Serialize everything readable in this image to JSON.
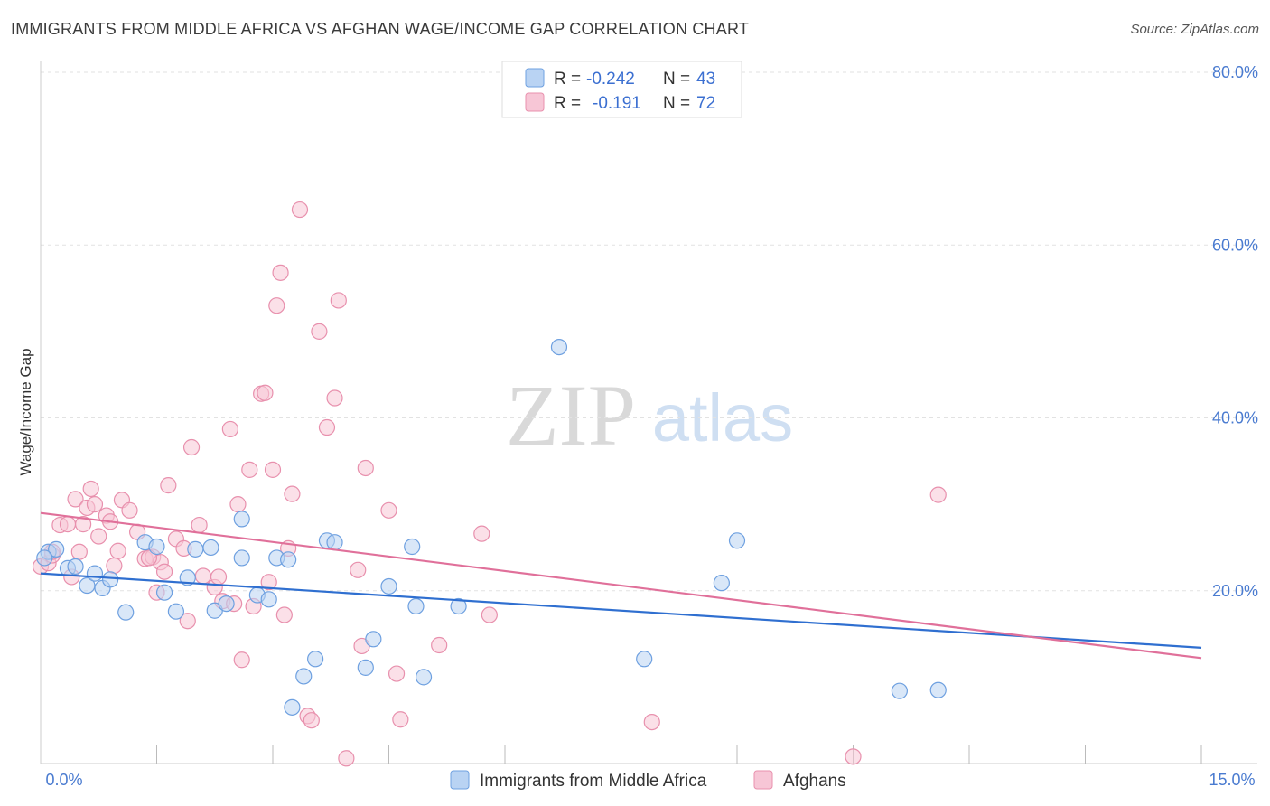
{
  "title": "IMMIGRANTS FROM MIDDLE AFRICA VS AFGHAN WAGE/INCOME GAP CORRELATION CHART",
  "source": "Source: ZipAtlas.com",
  "watermark": {
    "zip": "ZIP",
    "atlas": "atlas"
  },
  "colors": {
    "blue_fill": "#b9d3f3",
    "blue_stroke": "#6ea0e0",
    "blue_line": "#2f6fd0",
    "pink_fill": "#f7c6d6",
    "pink_stroke": "#e890ad",
    "pink_line": "#e0709a",
    "axis_label": "#4a7bd0"
  },
  "legend": {
    "rows": [
      {
        "r_label": "R =",
        "r_value": "-0.242",
        "n_label": "N =",
        "n_value": "43"
      },
      {
        "r_label": "R =",
        "r_value": "-0.191",
        "n_label": "N =",
        "n_value": "72"
      }
    ]
  },
  "chart_data": {
    "type": "scatter",
    "title": "IMMIGRANTS FROM MIDDLE AFRICA VS AFGHAN WAGE/INCOME GAP CORRELATION CHART",
    "xlabel": "",
    "ylabel": "Wage/Income Gap",
    "xlim": [
      0,
      15
    ],
    "ylim": [
      0,
      80
    ],
    "x_tick_labels": [
      "0.0%",
      "15.0%"
    ],
    "y_tick_labels": [
      "20.0%",
      "40.0%",
      "60.0%",
      "80.0%"
    ],
    "y_ticks": [
      20,
      40,
      60,
      80
    ],
    "legend_entries": [
      "Immigrants from Middle Africa",
      "Afghans"
    ],
    "series": [
      {
        "name": "Immigrants from Middle Africa",
        "color": "blue",
        "trend": {
          "x": [
            0,
            15
          ],
          "y": [
            22.0,
            13.4
          ]
        },
        "points": [
          [
            0.1,
            24.5
          ],
          [
            0.2,
            24.8
          ],
          [
            0.35,
            22.6
          ],
          [
            0.45,
            22.8
          ],
          [
            0.6,
            20.6
          ],
          [
            0.7,
            22.0
          ],
          [
            0.8,
            20.3
          ],
          [
            0.9,
            21.3
          ],
          [
            1.1,
            17.5
          ],
          [
            1.35,
            25.6
          ],
          [
            1.5,
            25.1
          ],
          [
            1.6,
            19.8
          ],
          [
            1.75,
            17.6
          ],
          [
            1.9,
            21.5
          ],
          [
            2.0,
            24.8
          ],
          [
            2.2,
            25.0
          ],
          [
            2.25,
            17.7
          ],
          [
            2.4,
            18.5
          ],
          [
            2.6,
            23.8
          ],
          [
            2.6,
            28.3
          ],
          [
            2.8,
            19.5
          ],
          [
            2.95,
            19.0
          ],
          [
            3.05,
            23.8
          ],
          [
            3.2,
            23.6
          ],
          [
            3.25,
            6.5
          ],
          [
            3.4,
            10.1
          ],
          [
            3.55,
            12.1
          ],
          [
            3.7,
            25.8
          ],
          [
            3.8,
            25.6
          ],
          [
            4.2,
            11.1
          ],
          [
            4.3,
            14.4
          ],
          [
            4.5,
            20.5
          ],
          [
            4.8,
            25.1
          ],
          [
            4.85,
            18.2
          ],
          [
            4.95,
            10.0
          ],
          [
            5.4,
            18.2
          ],
          [
            6.7,
            48.2
          ],
          [
            7.8,
            12.1
          ],
          [
            8.8,
            20.9
          ],
          [
            9.0,
            25.8
          ],
          [
            11.1,
            8.4
          ],
          [
            11.6,
            8.5
          ],
          [
            0.05,
            23.8
          ]
        ]
      },
      {
        "name": "Afghans",
        "color": "pink",
        "trend": {
          "x": [
            0,
            15
          ],
          "y": [
            29.0,
            12.2
          ]
        },
        "points": [
          [
            0.0,
            22.8
          ],
          [
            0.1,
            23.2
          ],
          [
            0.15,
            24.1
          ],
          [
            0.25,
            27.6
          ],
          [
            0.35,
            27.7
          ],
          [
            0.4,
            21.6
          ],
          [
            0.45,
            30.6
          ],
          [
            0.55,
            27.7
          ],
          [
            0.6,
            29.6
          ],
          [
            0.65,
            31.8
          ],
          [
            0.7,
            30.0
          ],
          [
            0.75,
            26.3
          ],
          [
            0.85,
            28.7
          ],
          [
            0.9,
            28.0
          ],
          [
            0.95,
            22.9
          ],
          [
            1.0,
            24.6
          ],
          [
            1.05,
            30.5
          ],
          [
            1.15,
            29.3
          ],
          [
            1.25,
            26.8
          ],
          [
            1.35,
            23.7
          ],
          [
            1.45,
            23.9
          ],
          [
            1.5,
            19.8
          ],
          [
            1.55,
            23.3
          ],
          [
            1.6,
            22.2
          ],
          [
            1.65,
            32.2
          ],
          [
            1.75,
            26.0
          ],
          [
            1.85,
            24.9
          ],
          [
            1.9,
            16.5
          ],
          [
            1.95,
            36.6
          ],
          [
            2.05,
            27.6
          ],
          [
            2.1,
            21.7
          ],
          [
            2.25,
            20.4
          ],
          [
            2.3,
            21.6
          ],
          [
            2.35,
            18.8
          ],
          [
            2.45,
            38.7
          ],
          [
            2.5,
            18.5
          ],
          [
            2.55,
            30.0
          ],
          [
            2.6,
            12.0
          ],
          [
            2.7,
            34.0
          ],
          [
            2.75,
            18.2
          ],
          [
            2.85,
            42.8
          ],
          [
            2.9,
            42.9
          ],
          [
            2.95,
            21.0
          ],
          [
            3.0,
            34.0
          ],
          [
            3.05,
            53.0
          ],
          [
            3.1,
            56.8
          ],
          [
            3.15,
            17.2
          ],
          [
            3.2,
            24.9
          ],
          [
            3.25,
            31.2
          ],
          [
            3.35,
            64.1
          ],
          [
            3.45,
            5.5
          ],
          [
            3.5,
            5.0
          ],
          [
            3.6,
            50.0
          ],
          [
            3.7,
            38.9
          ],
          [
            3.8,
            42.3
          ],
          [
            3.85,
            53.6
          ],
          [
            3.95,
            0.6
          ],
          [
            4.1,
            22.4
          ],
          [
            4.15,
            13.6
          ],
          [
            4.2,
            34.2
          ],
          [
            4.5,
            29.3
          ],
          [
            4.6,
            10.4
          ],
          [
            4.65,
            5.1
          ],
          [
            5.15,
            13.7
          ],
          [
            5.7,
            26.6
          ],
          [
            5.8,
            17.2
          ],
          [
            7.9,
            4.8
          ],
          [
            10.5,
            0.8
          ],
          [
            11.6,
            31.1
          ],
          [
            0.15,
            24.5
          ],
          [
            0.5,
            24.5
          ],
          [
            1.4,
            23.8
          ]
        ]
      }
    ]
  }
}
